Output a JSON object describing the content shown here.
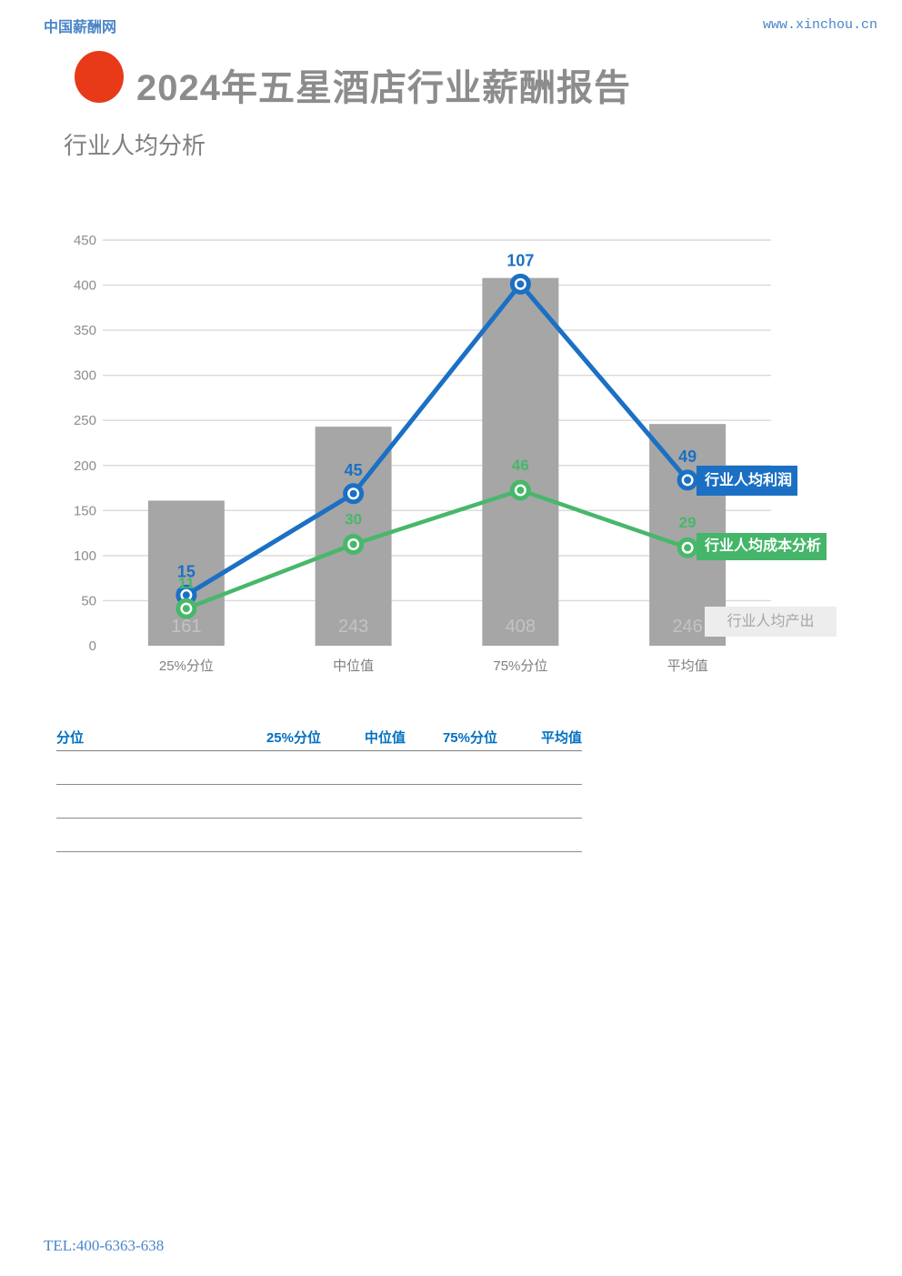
{
  "header": {
    "site_name": "中国薪酬网",
    "site_url": "www.xinchou.cn"
  },
  "report": {
    "title": "2024年五星酒店行业薪酬报告",
    "section_title": "行业人均分析"
  },
  "chart_data": {
    "type": "bar+line combo",
    "categories": [
      "25%分位",
      "中位值",
      "75%分位",
      "平均值"
    ],
    "series": [
      {
        "name": "行业人均产出",
        "type": "bar",
        "axis": "primary",
        "color": "#a6a6a6",
        "label_color": "#c3c3c3",
        "values": [
          161,
          243,
          408,
          246
        ]
      },
      {
        "name": "行业人均利润",
        "type": "line",
        "axis": "secondary",
        "color": "#1b70c4",
        "values": [
          15,
          45,
          107,
          49
        ]
      },
      {
        "name": "行业人均成本分析",
        "type": "line",
        "axis": "secondary",
        "color": "#48b76a",
        "values": [
          11,
          30,
          46,
          29
        ]
      }
    ],
    "primary_axis": {
      "min": 0,
      "max": 450,
      "step": 50
    },
    "secondary_axis": {
      "min": 0,
      "max": 120,
      "shown": false
    },
    "grid": true,
    "legend_position": "right-overlay",
    "title": "",
    "xlabel": "",
    "ylabel": ""
  },
  "table": {
    "headers": [
      "分位",
      "25%分位",
      "中位值",
      "75%分位",
      "平均值"
    ],
    "rows": [
      [
        "",
        "",
        "",
        "",
        ""
      ],
      [
        "",
        "",
        "",
        "",
        ""
      ],
      [
        "",
        "",
        "",
        "",
        ""
      ]
    ]
  },
  "footer": {
    "tel": "TEL:400-6363-638"
  },
  "colors": {
    "link_blue": "#4a86c8",
    "logo_red": "#e83a19",
    "title_gray": "#8c8c8c",
    "grid_gray": "#d9d9d9",
    "table_header_blue": "#0070c0",
    "legend_output_bg": "#ededed"
  }
}
